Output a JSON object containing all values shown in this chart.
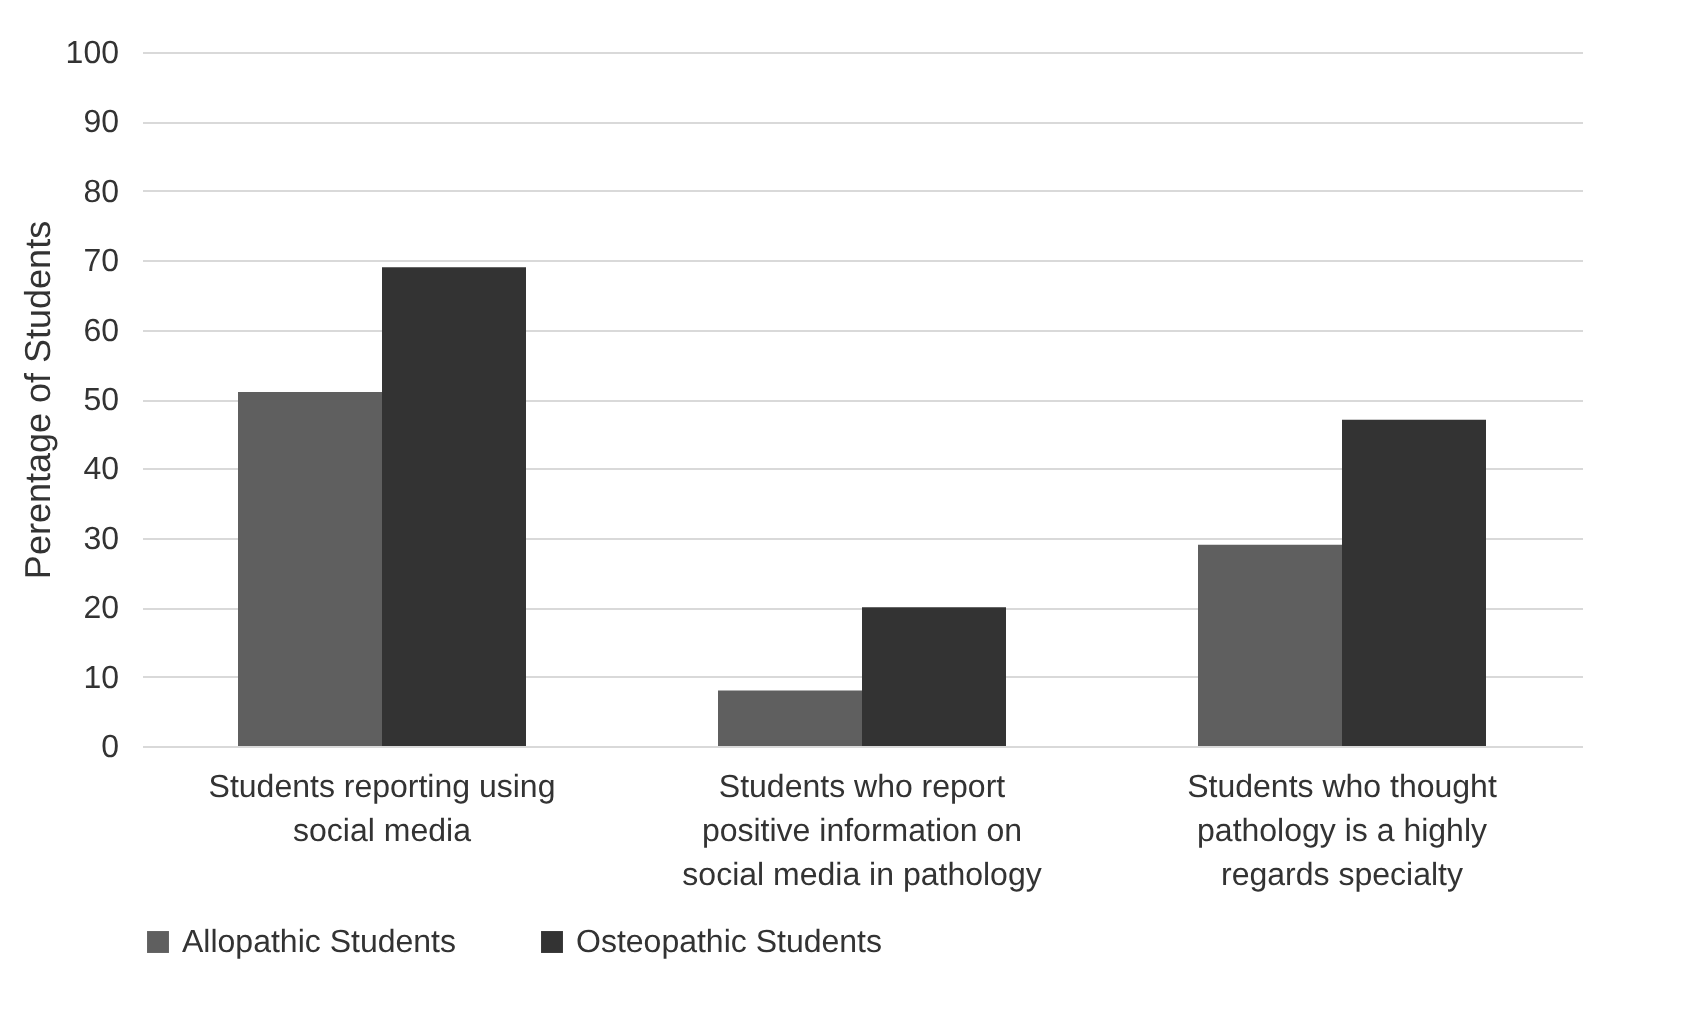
{
  "chart_data": {
    "type": "bar",
    "ylabel": "Perentage of Students",
    "categories": [
      "Students reporting using social media",
      "Students who report positive information on social media in pathology",
      "Students who thought pathology is a highly regards specialty"
    ],
    "series": [
      {
        "name": "Allopathic Students",
        "color": "#5f5f5f",
        "values": [
          51,
          8,
          29
        ]
      },
      {
        "name": "Osteopathic Students",
        "color": "#333333",
        "values": [
          69,
          20,
          47
        ]
      }
    ],
    "ylim": [
      0,
      100
    ],
    "yticks": [
      0,
      10,
      20,
      30,
      40,
      50,
      60,
      70,
      80,
      90,
      100
    ],
    "grid": "y",
    "legend": "bottom"
  }
}
